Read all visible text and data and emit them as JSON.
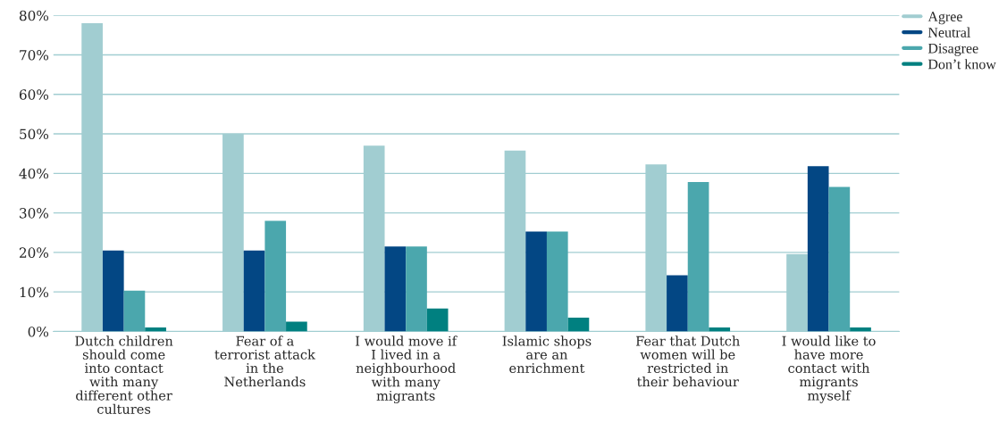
{
  "chart_data": {
    "type": "bar",
    "categories": [
      "Dutch children\nshould come\ninto contact\nwith many\ndifferent other\ncultures",
      "Fear of a\nterrorist attack\nin the\nNetherlands",
      "I would move if\nI lived in a\nneighbourhood\nwith many\nmigrants",
      "Islamic shops\nare an\nenrichment",
      "Fear that Dutch\nwomen will be\nrestricted in\ntheir behaviour",
      "I would like to\nhave more\ncontact with\nmigrants\nmyself"
    ],
    "series": [
      {
        "name": "Agree",
        "color": "#a1cdd1",
        "values": [
          78,
          50,
          47,
          45.8,
          42.3,
          19.6
        ]
      },
      {
        "name": "Neutral",
        "color": "#034784",
        "values": [
          20.5,
          20.5,
          21.5,
          25.3,
          14.2,
          41.8
        ]
      },
      {
        "name": "Disagree",
        "color": "#4ba7ad",
        "values": [
          10.3,
          28,
          21.5,
          25.3,
          37.8,
          36.6
        ]
      },
      {
        "name": "Don’t know",
        "color": "#008080",
        "values": [
          1,
          2.5,
          5.8,
          3.5,
          1,
          1
        ]
      }
    ],
    "ylim": [
      0,
      80
    ],
    "yticks": [
      {
        "value": 0,
        "label": "0%"
      },
      {
        "value": 10,
        "label": "10%"
      },
      {
        "value": 20,
        "label": "20%"
      },
      {
        "value": 30,
        "label": "30%"
      },
      {
        "value": 40,
        "label": "40%"
      },
      {
        "value": 50,
        "label": "50%"
      },
      {
        "value": 60,
        "label": "60%"
      },
      {
        "value": 70,
        "label": "70%"
      },
      {
        "value": 80,
        "label": "80%"
      }
    ],
    "grid": "y",
    "legend": "top right"
  }
}
